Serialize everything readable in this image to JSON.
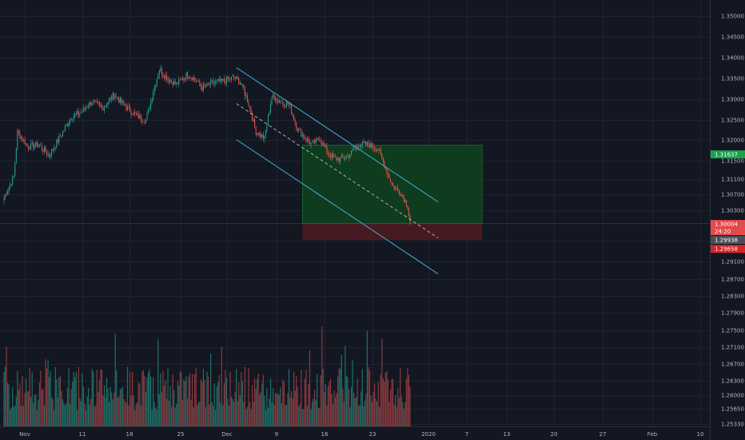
{
  "app": {
    "title": ""
  },
  "colors": {
    "background": "#131722",
    "grid": "#1f2330",
    "axis_text": "#b2b5be",
    "up": "#26a69a",
    "down": "#ef5350",
    "volume_up": "#1f6f67",
    "volume_down": "#8b3a3e",
    "channel_line": "#3fb6e0",
    "midline": "#b8bcc8",
    "profit_zone": "#0f3d1f",
    "loss_zone": "#4a1a22",
    "target_tag": "#1aa04c",
    "entry_tag": "#e44a4a",
    "current_tag": "#4a4e58",
    "stop_tag": "#d6232a"
  },
  "chart_data": {
    "type": "candlestick",
    "symbol": "",
    "price_axis": {
      "ticks": [
        "1.35000",
        "1.34500",
        "1.34000",
        "1.33500",
        "1.33000",
        "1.32500",
        "1.32000",
        "1.31500",
        "1.31100",
        "1.30700",
        "1.30300",
        "1.29900",
        "1.29100",
        "1.28700",
        "1.28300",
        "1.27900",
        "1.27500",
        "1.27100",
        "1.26700",
        "1.26300",
        "1.26000",
        "1.25650",
        "1.25330"
      ],
      "tick_values": [
        1.35,
        1.345,
        1.34,
        1.335,
        1.33,
        1.325,
        1.32,
        1.315,
        1.311,
        1.307,
        1.303,
        1.299,
        1.291,
        1.287,
        1.283,
        1.279,
        1.275,
        1.271,
        1.267,
        1.263,
        1.26,
        1.2565,
        1.2533
      ]
    },
    "time_axis": {
      "labels": [
        "Nov",
        "11",
        "18",
        "25",
        "Dec",
        "9",
        "16",
        "23",
        "2020",
        "7",
        "13",
        "20",
        "27",
        "Feb",
        "10"
      ],
      "bars_per_week": 20
    },
    "price_tags": {
      "target": {
        "label": "1.31637",
        "value": 1.31637
      },
      "entry": {
        "label": "1.30004",
        "value": 1.30004
      },
      "countdown": {
        "label": "24:20"
      },
      "current": {
        "label": "1.29938",
        "value": 1.29938
      },
      "stop": {
        "label": "1.29658",
        "value": 1.29658
      }
    },
    "channel": {
      "upper": [
        {
          "bar": 190,
          "price": 1.3325
        },
        {
          "bar": 355,
          "price": 1.3045
        }
      ],
      "lower": [
        {
          "bar": 190,
          "price": 1.3175
        },
        {
          "bar": 355,
          "price": 1.2895
        }
      ],
      "mid": [
        {
          "bar": 190,
          "price": 1.325
        },
        {
          "bar": 355,
          "price": 1.297
        }
      ]
    },
    "position": {
      "start_bar": 244,
      "end_bar": 391,
      "target": 1.31637,
      "entry": 1.30004,
      "stop": 1.29658
    },
    "path": [
      [
        0,
        1.3055
      ],
      [
        8,
        1.3098
      ],
      [
        11,
        1.319
      ],
      [
        20,
        1.316
      ],
      [
        28,
        1.3165
      ],
      [
        37,
        1.3142
      ],
      [
        46,
        1.3182
      ],
      [
        55,
        1.3222
      ],
      [
        63,
        1.3232
      ],
      [
        72,
        1.3255
      ],
      [
        80,
        1.324
      ],
      [
        90,
        1.3268
      ],
      [
        100,
        1.3242
      ],
      [
        108,
        1.3225
      ],
      [
        116,
        1.3215
      ],
      [
        122,
        1.3275
      ],
      [
        127,
        1.3322
      ],
      [
        134,
        1.3302
      ],
      [
        141,
        1.329
      ],
      [
        150,
        1.3312
      ],
      [
        156,
        1.3302
      ],
      [
        162,
        1.3282
      ],
      [
        170,
        1.3292
      ],
      [
        180,
        1.3297
      ],
      [
        188,
        1.3305
      ],
      [
        193,
        1.3295
      ],
      [
        199,
        1.3258
      ],
      [
        206,
        1.3192
      ],
      [
        213,
        1.3178
      ],
      [
        219,
        1.3265
      ],
      [
        225,
        1.3255
      ],
      [
        233,
        1.3248
      ],
      [
        240,
        1.3198
      ],
      [
        246,
        1.3178
      ],
      [
        252,
        1.3165
      ],
      [
        258,
        1.3178
      ],
      [
        264,
        1.315
      ],
      [
        270,
        1.3135
      ],
      [
        276,
        1.3135
      ],
      [
        282,
        1.3142
      ],
      [
        290,
        1.3165
      ],
      [
        298,
        1.3165
      ],
      [
        306,
        1.3155
      ],
      [
        312,
        1.3115
      ],
      [
        318,
        1.3078
      ],
      [
        324,
        1.3065
      ],
      [
        330,
        1.3038
      ],
      [
        332,
        1.3001
      ]
    ],
    "volume_max": 1.0
  }
}
